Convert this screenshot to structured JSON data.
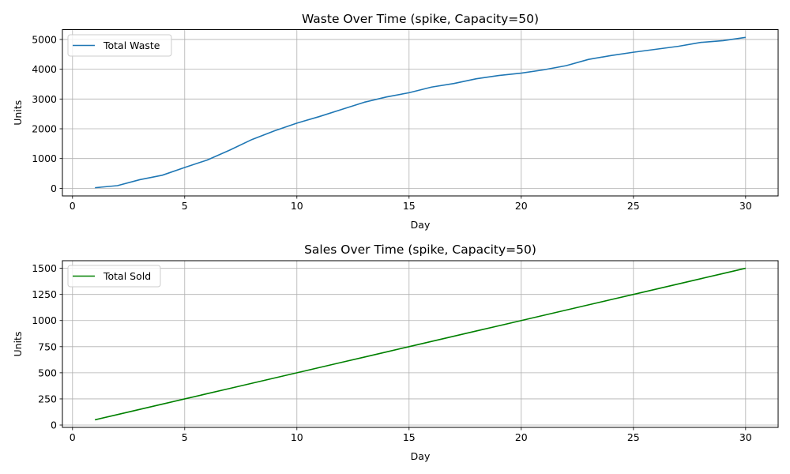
{
  "chart_data": [
    {
      "type": "line",
      "title": "Waste Over Time (spike, Capacity=50)",
      "xlabel": "Day",
      "ylabel": "Units",
      "xlim": [
        -0.45,
        31.45
      ],
      "ylim": [
        -255,
        5330
      ],
      "xticks": [
        0,
        5,
        10,
        15,
        20,
        25,
        30
      ],
      "yticks": [
        0,
        1000,
        2000,
        3000,
        4000,
        5000
      ],
      "grid": true,
      "legend_position": "upper-left",
      "series": [
        {
          "name": "Total Waste",
          "color": "#1f77b4",
          "x": [
            1,
            2,
            3,
            4,
            5,
            6,
            7,
            8,
            9,
            10,
            11,
            12,
            13,
            14,
            15,
            16,
            17,
            18,
            19,
            20,
            21,
            22,
            23,
            24,
            25,
            26,
            27,
            28,
            29,
            30
          ],
          "y": [
            20,
            90,
            290,
            440,
            700,
            950,
            1280,
            1640,
            1930,
            2190,
            2410,
            2650,
            2890,
            3070,
            3210,
            3400,
            3520,
            3680,
            3790,
            3870,
            3980,
            4120,
            4330,
            4460,
            4570,
            4670,
            4770,
            4900,
            4960,
            5070
          ]
        }
      ]
    },
    {
      "type": "line",
      "title": "Sales Over Time (spike, Capacity=50)",
      "xlabel": "Day",
      "ylabel": "Units",
      "xlim": [
        -0.45,
        31.45
      ],
      "ylim": [
        -22.5,
        1572.5
      ],
      "xticks": [
        0,
        5,
        10,
        15,
        20,
        25,
        30
      ],
      "yticks": [
        0,
        250,
        500,
        750,
        1000,
        1250,
        1500
      ],
      "grid": true,
      "legend_position": "upper-left",
      "series": [
        {
          "name": "Total Sold",
          "color": "#008000",
          "x": [
            1,
            2,
            3,
            4,
            5,
            6,
            7,
            8,
            9,
            10,
            11,
            12,
            13,
            14,
            15,
            16,
            17,
            18,
            19,
            20,
            21,
            22,
            23,
            24,
            25,
            26,
            27,
            28,
            29,
            30
          ],
          "y": [
            50,
            100,
            150,
            200,
            250,
            300,
            350,
            400,
            450,
            500,
            550,
            600,
            650,
            700,
            750,
            800,
            850,
            900,
            950,
            1000,
            1050,
            1100,
            1150,
            1200,
            1250,
            1300,
            1350,
            1400,
            1450,
            1500
          ]
        }
      ]
    }
  ]
}
